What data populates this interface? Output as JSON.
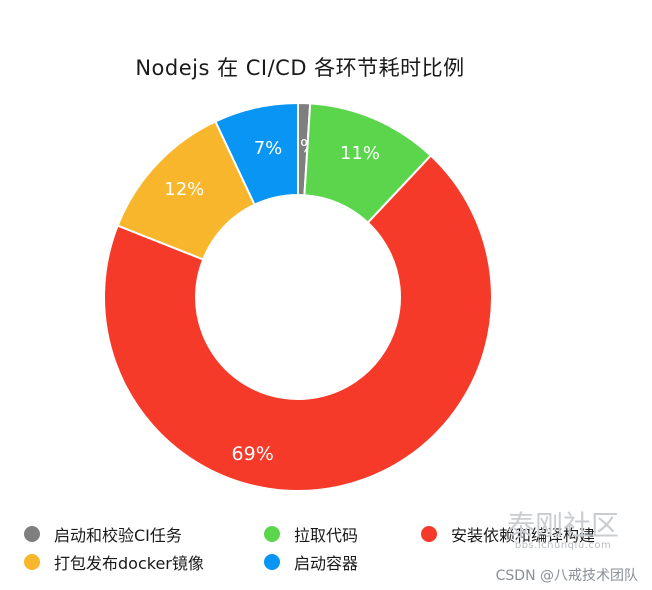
{
  "chart_data": {
    "type": "pie",
    "title": "Nodejs 在 CI/CD 各环节耗时比例",
    "donut": true,
    "legend_position": "bottom",
    "slices": [
      {
        "name": "启动和校验CI任务",
        "value": 1,
        "label": "1%",
        "color": "#7f7f7f"
      },
      {
        "name": "拉取代码",
        "value": 11,
        "label": "11%",
        "color": "#5bd64c"
      },
      {
        "name": "安装依赖和编译构建",
        "value": 69,
        "label": "69%",
        "color": "#f63a2a"
      },
      {
        "name": "打包发布docker镜像",
        "value": 12,
        "label": "12%",
        "color": "#f8b62c"
      },
      {
        "name": "启动容器",
        "value": 7,
        "label": "7%",
        "color": "#0895f3"
      }
    ]
  },
  "watermark": {
    "main": "泰刚社区",
    "sub": "bbs.ichunqiu.com",
    "credit": "CSDN @八戒技术团队"
  }
}
